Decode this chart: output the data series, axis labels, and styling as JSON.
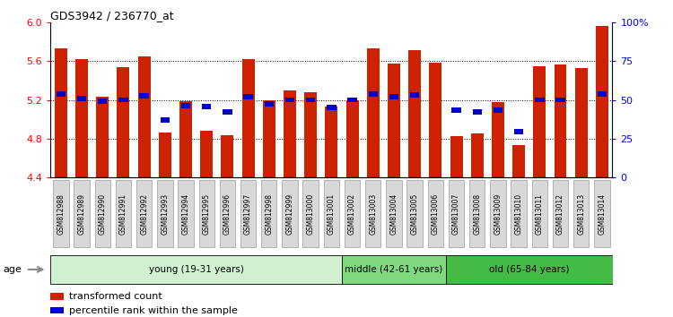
{
  "title": "GDS3942 / 236770_at",
  "samples": [
    "GSM812988",
    "GSM812989",
    "GSM812990",
    "GSM812991",
    "GSM812992",
    "GSM812993",
    "GSM812994",
    "GSM812995",
    "GSM812996",
    "GSM812997",
    "GSM812998",
    "GSM812999",
    "GSM813000",
    "GSM813001",
    "GSM813002",
    "GSM813003",
    "GSM813004",
    "GSM813005",
    "GSM813006",
    "GSM813007",
    "GSM813008",
    "GSM813009",
    "GSM813010",
    "GSM813011",
    "GSM813012",
    "GSM813013",
    "GSM813014"
  ],
  "red_values": [
    5.73,
    5.62,
    5.23,
    5.54,
    5.65,
    4.86,
    5.19,
    4.88,
    4.84,
    5.62,
    5.2,
    5.3,
    5.28,
    5.13,
    5.2,
    5.73,
    5.57,
    5.71,
    5.58,
    4.83,
    4.85,
    5.18,
    4.73,
    5.55,
    5.56,
    5.53,
    5.96
  ],
  "blue_values": [
    5.26,
    5.21,
    5.19,
    5.2,
    5.24,
    4.99,
    5.14,
    5.13,
    5.08,
    5.23,
    5.16,
    5.2,
    5.2,
    5.12,
    5.2,
    5.26,
    5.23,
    5.25,
    null,
    5.09,
    5.08,
    5.09,
    4.87,
    5.2,
    5.2,
    null,
    5.26
  ],
  "groups": [
    {
      "label": "young (19-31 years)",
      "start": 0,
      "end": 14,
      "color": "#d0f0d0"
    },
    {
      "label": "middle (42-61 years)",
      "start": 14,
      "end": 19,
      "color": "#80d880"
    },
    {
      "label": "old (65-84 years)",
      "start": 19,
      "end": 27,
      "color": "#44bb44"
    }
  ],
  "ymin": 4.4,
  "ymax": 6.0,
  "y2min": 0,
  "y2max": 100,
  "yticks": [
    4.4,
    4.8,
    5.2,
    5.6,
    6.0
  ],
  "y2ticks": [
    0,
    25,
    50,
    75,
    100
  ],
  "bar_color": "#cc2200",
  "blue_color": "#0000cc",
  "legend_red": "transformed count",
  "legend_blue": "percentile rank within the sample"
}
